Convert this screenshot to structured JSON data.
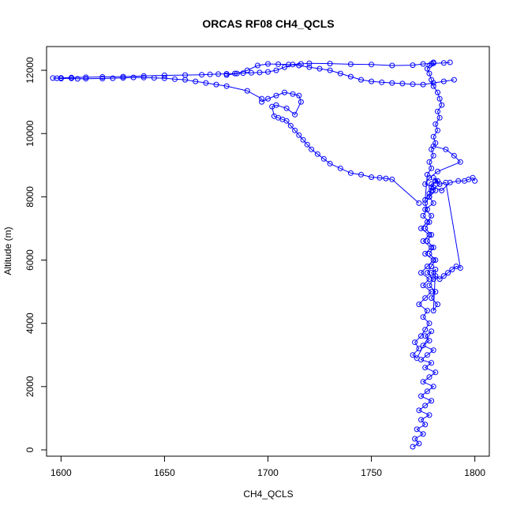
{
  "chart_data": {
    "type": "scatter",
    "title": "ORCAS RF08 CH4_QCLS",
    "xlabel": "CH4_QCLS",
    "ylabel": "Altitude (m)",
    "xlim": [
      1593,
      1807
    ],
    "ylim": [
      -200,
      12750
    ],
    "xticks": [
      1600,
      1650,
      1700,
      1750,
      1800
    ],
    "yticks": [
      0,
      2000,
      4000,
      6000,
      8000,
      10000,
      12000
    ],
    "series_color": "#0000ff",
    "marker": "open-circle",
    "connected": true,
    "series": [
      {
        "x": [
          1770,
          1773,
          1771,
          1775,
          1772,
          1776,
          1774,
          1778,
          1773,
          1776,
          1779,
          1774,
          1777,
          1780,
          1775,
          1778,
          1781,
          1776,
          1779,
          1774,
          1777,
          1780,
          1775,
          1778,
          1776,
          1779,
          1772,
          1770,
          1773,
          1771,
          1774,
          1776,
          1778,
          1775,
          1777,
          1773,
          1776,
          1779,
          1775,
          1778,
          1774,
          1777,
          1780,
          1776,
          1779,
          1775,
          1778,
          1774,
          1777,
          1779,
          1776,
          1780,
          1778,
          1781,
          1779,
          1782,
          1780,
          1783,
          1779,
          1778,
          1776,
          1777,
          1775,
          1778,
          1776,
          1779,
          1777,
          1780,
          1778,
          1781,
          1779,
          1777,
          1780,
          1778,
          1781,
          1779,
          1782,
          1780,
          1781,
          1779,
          1781,
          1783,
          1785,
          1787,
          1789,
          1791,
          1793,
          1786,
          1783,
          1781,
          1779,
          1778,
          1776,
          1777,
          1779,
          1778,
          1780,
          1779,
          1781,
          1780,
          1782,
          1781,
          1783,
          1782,
          1784,
          1783,
          1782,
          1780,
          1779,
          1778,
          1777,
          1778,
          1779,
          1780
        ],
        "y": [
          100,
          200,
          350,
          500,
          650,
          800,
          950,
          1100,
          1250,
          1400,
          1550,
          1700,
          1850,
          2000,
          2150,
          2300,
          2450,
          2600,
          2750,
          2850,
          3000,
          3150,
          3300,
          3450,
          3600,
          3750,
          2900,
          3000,
          3200,
          3400,
          3600,
          3800,
          4000,
          4200,
          4400,
          4600,
          4800,
          5000,
          5200,
          5400,
          5600,
          5800,
          6000,
          6200,
          6400,
          6600,
          6800,
          7000,
          7200,
          7400,
          7600,
          7800,
          8000,
          8200,
          8400,
          8500,
          8600,
          8400,
          8200,
          8000,
          7800,
          7600,
          7400,
          7200,
          7000,
          6800,
          6600,
          6400,
          6200,
          6000,
          5800,
          5600,
          5400,
          5200,
          5000,
          4800,
          4600,
          4400,
          5700,
          5600,
          5500,
          5400,
          5500,
          5600,
          5700,
          5800,
          5750,
          8450,
          8400,
          8500,
          8300,
          8100,
          7900,
          8700,
          8900,
          9100,
          9300,
          9500,
          9700,
          9900,
          10100,
          10300,
          10500,
          10700,
          10900,
          11100,
          11300,
          11500,
          11700,
          11900,
          12050,
          12150,
          12200,
          12250
        ]
      },
      {
        "x": [
          1780,
          1786,
          1790,
          1793,
          1782,
          1778,
          1776,
          1780,
          1784,
          1788,
          1792,
          1795,
          1797,
          1799,
          1800
        ],
        "y": [
          9600,
          9500,
          9300,
          9100,
          8800,
          8600,
          8400,
          8300,
          8200,
          8450,
          8500,
          8500,
          8550,
          8600,
          8500
        ]
      },
      {
        "x": [
          1773,
          1760,
          1757,
          1754,
          1750,
          1745,
          1740,
          1735,
          1730,
          1727,
          1724,
          1721,
          1719,
          1717,
          1715,
          1713,
          1711,
          1709,
          1707,
          1705,
          1703,
          1702,
          1704,
          1709,
          1713,
          1716,
          1715,
          1712,
          1708,
          1704,
          1700,
          1697
        ],
        "y": [
          7800,
          8550,
          8580,
          8600,
          8620,
          8700,
          8750,
          8900,
          9050,
          9200,
          9350,
          9500,
          9650,
          9800,
          9950,
          10100,
          10250,
          10400,
          10450,
          10500,
          10550,
          10850,
          10900,
          10800,
          10600,
          11000,
          11200,
          11250,
          11300,
          11200,
          11100,
          11000
        ]
      },
      {
        "x": [
          1697,
          1690,
          1680,
          1675,
          1670,
          1665,
          1660,
          1655,
          1650,
          1645,
          1640,
          1635,
          1630,
          1625,
          1620,
          1612,
          1608,
          1605,
          1600,
          1598,
          1596,
          1600,
          1605,
          1612,
          1620,
          1630,
          1640,
          1650,
          1660,
          1668,
          1672,
          1676,
          1680,
          1684,
          1688,
          1692,
          1696,
          1700,
          1704,
          1708,
          1712,
          1716,
          1720,
          1730,
          1740,
          1750,
          1760,
          1770,
          1775,
          1780,
          1785,
          1788
        ],
        "y": [
          11100,
          11350,
          11500,
          11550,
          11600,
          11650,
          11700,
          11720,
          11750,
          11760,
          11770,
          11775,
          11760,
          11750,
          11740,
          11735,
          11730,
          11745,
          11740,
          11750,
          11755,
          11760,
          11770,
          11780,
          11790,
          11800,
          11820,
          11840,
          11850,
          11860,
          11870,
          11880,
          11890,
          11900,
          11910,
          11920,
          11930,
          11950,
          12000,
          12100,
          12180,
          12200,
          12220,
          12210,
          12190,
          12180,
          12150,
          12160,
          12200,
          12220,
          12230,
          12250
        ]
      },
      {
        "x": [
          1790,
          1785,
          1780,
          1775,
          1770,
          1765,
          1760,
          1755,
          1750,
          1745,
          1740,
          1735,
          1730,
          1725,
          1720,
          1715,
          1710,
          1705,
          1700,
          1695,
          1690,
          1685,
          1680
        ],
        "y": [
          11700,
          11650,
          11600,
          11550,
          11560,
          11580,
          11600,
          11620,
          11650,
          11700,
          11800,
          11900,
          12000,
          12050,
          12100,
          12150,
          12180,
          12190,
          12200,
          12150,
          12000,
          11900,
          11850
        ]
      }
    ]
  }
}
